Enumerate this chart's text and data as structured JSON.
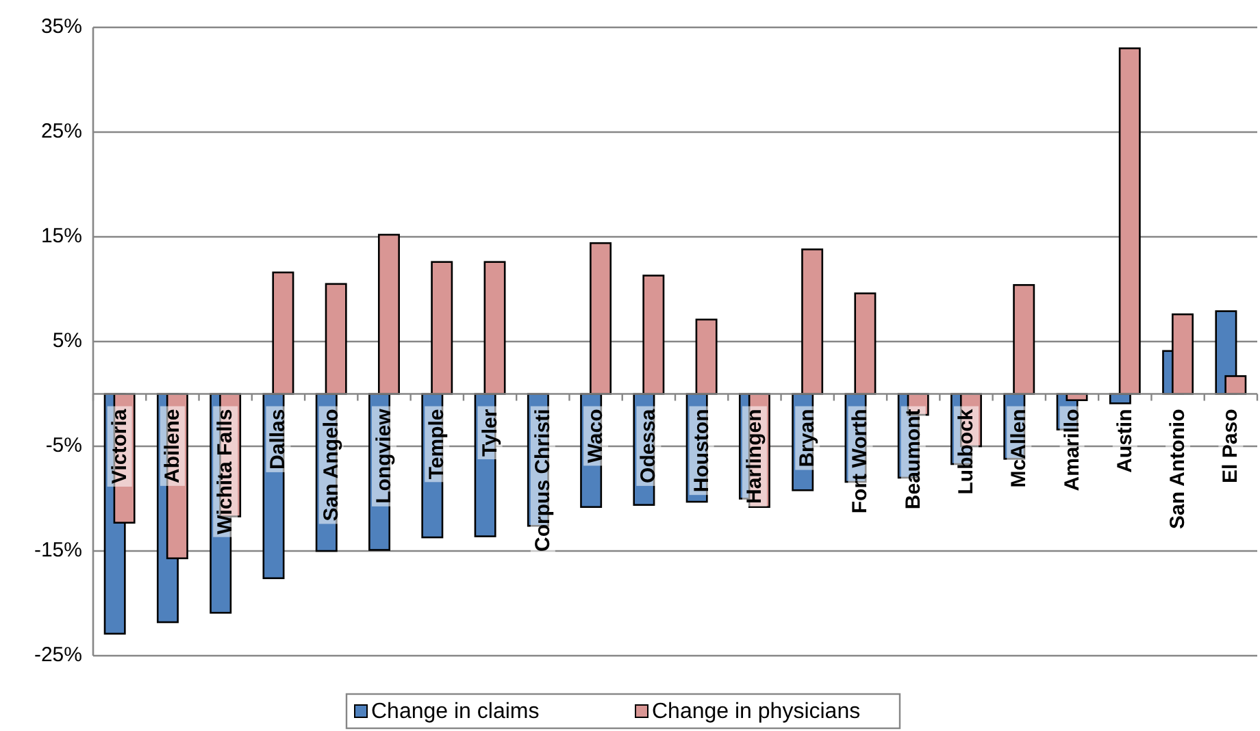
{
  "chart_data": {
    "type": "bar",
    "categories": [
      "Victoria",
      "Abilene",
      "Wichita Falls",
      "Dallas",
      "San Angelo",
      "Longview",
      "Temple",
      "Tyler",
      "Corpus Christi",
      "Waco",
      "Odessa",
      "Houston",
      "Harlingen",
      "Bryan",
      "Fort Worth",
      "Beaumont",
      "Lubbock",
      "McAllen",
      "Amarillo",
      "Austin",
      "San Antonio",
      "El Paso"
    ],
    "series": [
      {
        "name": "Change in claims",
        "color": "#4f81bd",
        "values": [
          -22.9,
          -21.8,
          -20.9,
          -17.6,
          -15.0,
          -14.9,
          -13.7,
          -13.6,
          -12.6,
          -10.8,
          -10.6,
          -10.3,
          -10.0,
          -9.2,
          -8.4,
          -8.0,
          -6.7,
          -6.2,
          -3.4,
          -0.9,
          4.1,
          7.9
        ]
      },
      {
        "name": "Change in physicians",
        "color": "#d99694",
        "values": [
          -12.3,
          -15.7,
          -11.7,
          11.6,
          10.5,
          15.2,
          12.6,
          12.6,
          null,
          14.4,
          11.3,
          7.1,
          -10.8,
          13.8,
          9.6,
          -2.0,
          -5.0,
          10.4,
          -0.6,
          33.0,
          7.6,
          1.7
        ]
      }
    ],
    "ylim": [
      -25,
      35
    ],
    "yticks": [
      {
        "value": -25,
        "label": "-25%"
      },
      {
        "value": -15,
        "label": "-15%"
      },
      {
        "value": -5,
        "label": "-5%"
      },
      {
        "value": 5,
        "label": "5%"
      },
      {
        "value": 15,
        "label": "15%"
      },
      {
        "value": 25,
        "label": "25%"
      },
      {
        "value": 35,
        "label": "35%"
      }
    ],
    "grid": "y",
    "legend": "bottom"
  }
}
